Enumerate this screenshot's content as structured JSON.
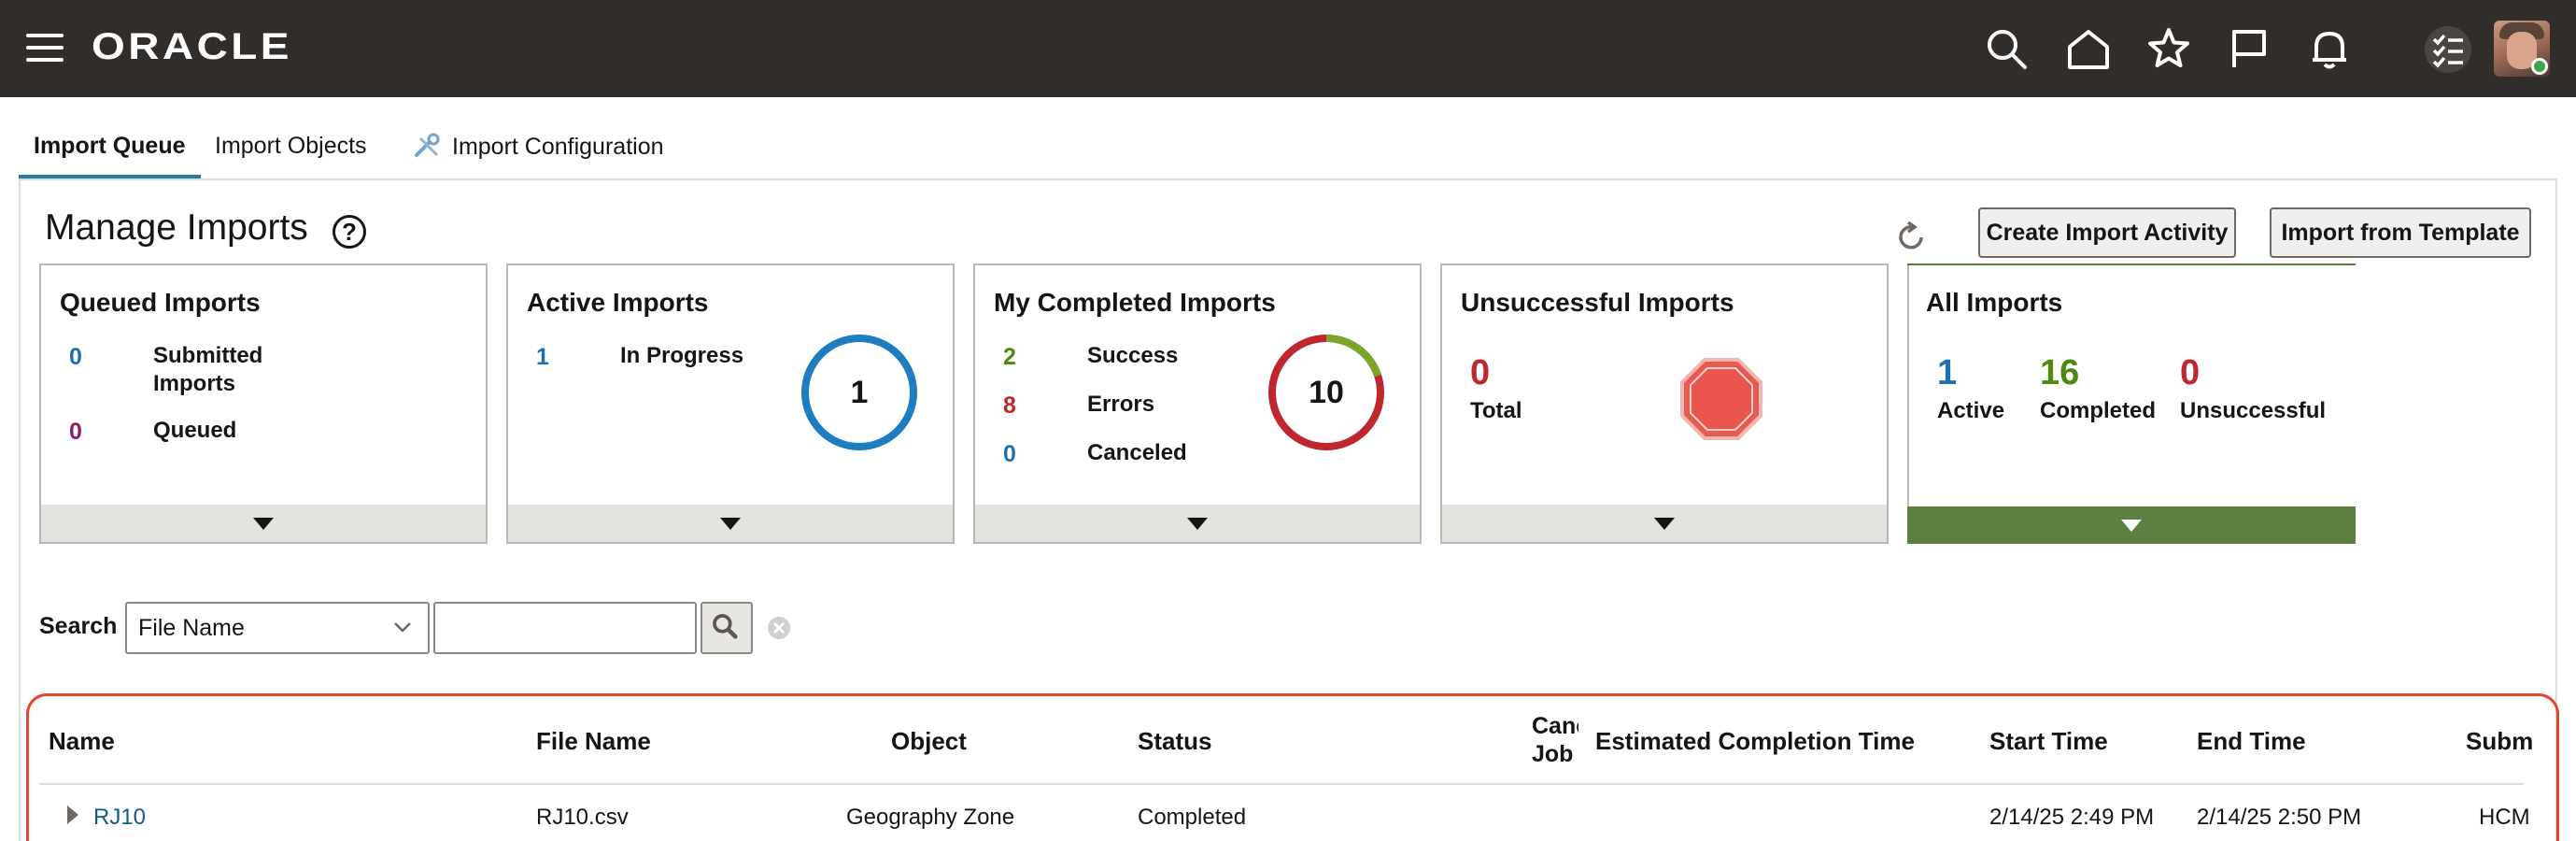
{
  "header": {
    "logo": "ORACLE",
    "icons": [
      "menu-icon",
      "search-icon",
      "home-icon",
      "favorites-star-icon",
      "flag-icon",
      "bell-icon",
      "tasks-icon",
      "user-avatar"
    ]
  },
  "tabs": [
    {
      "label": "Import Queue",
      "active": true
    },
    {
      "label": "Import Objects",
      "active": false
    },
    {
      "label": "Import Configuration",
      "active": false,
      "icon": "tools-icon"
    }
  ],
  "page": {
    "title": "Manage Imports",
    "help": "?",
    "buttons": {
      "create": "Create Import Activity",
      "template": "Import from Template"
    }
  },
  "cards": {
    "queued": {
      "title": "Queued Imports",
      "stats": [
        {
          "value": "0",
          "label": "Submitted Imports",
          "color": "#1d6fb0"
        },
        {
          "value": "0",
          "label": "Queued",
          "color": "#8a1f6b"
        }
      ]
    },
    "active": {
      "title": "Active Imports",
      "stats": [
        {
          "value": "1",
          "label": "In Progress",
          "color": "#1d6fb0"
        }
      ],
      "ring_value": "1",
      "ring_color": "#1d7dc0"
    },
    "completed": {
      "title": "My Completed Imports",
      "stats": [
        {
          "value": "2",
          "label": "Success",
          "color": "#4f8a10"
        },
        {
          "value": "8",
          "label": "Errors",
          "color": "#c0262d"
        },
        {
          "value": "0",
          "label": "Canceled",
          "color": "#1d6fb0"
        }
      ],
      "ring_value": "10",
      "success_fraction": 0.2,
      "ring_colors": {
        "success": "#7aa528",
        "error": "#c0262d"
      }
    },
    "unsuccessful": {
      "title": "Unsuccessful Imports",
      "total_value": "0",
      "total_label": "Total",
      "value_color": "#c0262d",
      "icon": "stop-octagon-icon"
    },
    "all": {
      "title": "All Imports",
      "stats": [
        {
          "value": "1",
          "label": "Active",
          "color": "#1d6fb0"
        },
        {
          "value": "16",
          "label": "Completed",
          "color": "#4f8a10"
        },
        {
          "value": "0",
          "label": "Unsuccessful",
          "color": "#c0262d"
        }
      ],
      "footer_color": "#5c7f42"
    }
  },
  "search": {
    "label": "Search",
    "field_selected": "File Name",
    "query_value": ""
  },
  "table": {
    "columns": [
      {
        "label": "Name"
      },
      {
        "label": "File Name"
      },
      {
        "label": "Object"
      },
      {
        "label": "Status"
      },
      {
        "label": "Canc Job"
      },
      {
        "label": "Estimated Completion Time"
      },
      {
        "label": "Start Time"
      },
      {
        "label": "End Time"
      },
      {
        "label": "Subm"
      }
    ],
    "rows": [
      {
        "name": "RJ10",
        "file_name": "RJ10.csv",
        "object": "Geography Zone",
        "status": "Completed",
        "cancel_job": "",
        "est_completion": "",
        "start_time": "2/14/25 2:49 PM",
        "end_time": "2/14/25 2:50 PM",
        "submitted_by": "HCM"
      }
    ]
  },
  "colors": {
    "header_bg": "#312d2a",
    "tab_accent": "#227e9e",
    "highlight_border": "#e0472f",
    "link": "#0f5c85"
  }
}
